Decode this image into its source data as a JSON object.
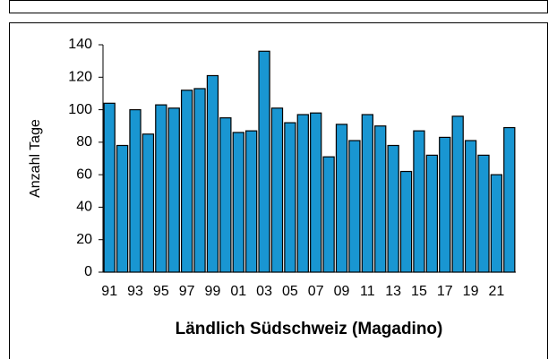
{
  "chart_data": {
    "type": "bar",
    "title": "Ländlich Südschweiz (Magadino)",
    "y_label": "Anzahl Tage",
    "categories": [
      "91",
      null,
      "93",
      null,
      "95",
      null,
      "97",
      null,
      "99",
      null,
      "01",
      null,
      "03",
      null,
      "05",
      null,
      "07",
      null,
      "09",
      null,
      "11",
      null,
      "13",
      null,
      "15",
      null,
      "17",
      null,
      "19",
      null,
      "21",
      null
    ],
    "values": [
      104,
      78,
      100,
      85,
      103,
      101,
      112,
      113,
      121,
      95,
      86,
      87,
      136,
      101,
      92,
      97,
      98,
      71,
      91,
      81,
      97,
      90,
      78,
      62,
      87,
      72,
      83,
      96,
      81,
      72,
      60,
      89
    ],
    "color": "#1996d2",
    "ylim": [
      0,
      140
    ],
    "yticks": [
      0,
      20,
      40,
      60,
      80,
      100,
      120,
      140
    ],
    "grid": false
  }
}
